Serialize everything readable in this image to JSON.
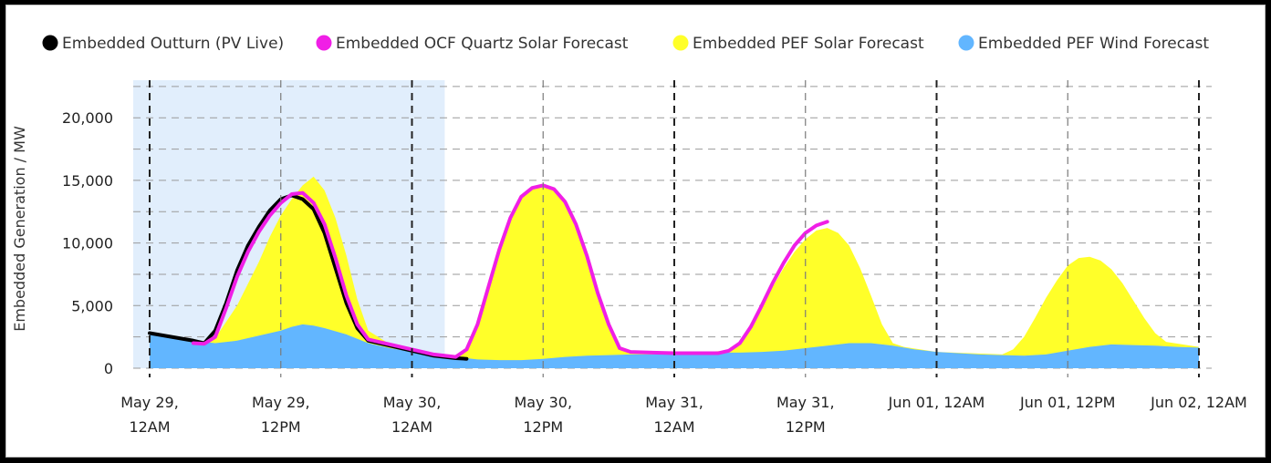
{
  "chart_data": {
    "type": "area",
    "ylabel": "Embedded Generation / MW",
    "xlabel": "",
    "ylim": [
      0,
      23000
    ],
    "y_ticks": [
      0,
      5000,
      10000,
      15000,
      20000
    ],
    "y_tick_labels": [
      "0",
      "5,000",
      "10,000",
      "15,000",
      "20,000"
    ],
    "x_range_hours": [
      0,
      96
    ],
    "x_ticks": [
      {
        "hour": 0,
        "lines": [
          "May 29,",
          "12AM"
        ]
      },
      {
        "hour": 12,
        "lines": [
          "May 29,",
          "12PM"
        ]
      },
      {
        "hour": 24,
        "lines": [
          "May 30,",
          "12AM"
        ]
      },
      {
        "hour": 36,
        "lines": [
          "May 30,",
          "12PM"
        ]
      },
      {
        "hour": 48,
        "lines": [
          "May 31,",
          "12AM"
        ]
      },
      {
        "hour": 60,
        "lines": [
          "May 31,",
          "12PM"
        ]
      },
      {
        "hour": 72,
        "lines": [
          "Jun 01, 12AM"
        ]
      },
      {
        "hour": 84,
        "lines": [
          "Jun 01, 12PM"
        ]
      },
      {
        "hour": 96,
        "lines": [
          "Jun 02, 12AM"
        ]
      }
    ],
    "shaded_region_hours": [
      -1.5,
      27
    ],
    "legend_position": "top",
    "series": [
      {
        "name": "Embedded PEF Solar Forecast",
        "kind": "area",
        "color": "#ffff29",
        "x": [
          0,
          5,
          6,
          8,
          10,
          11,
          12,
          13,
          14,
          15,
          16,
          17,
          18,
          19,
          20,
          22,
          24,
          27,
          28,
          29,
          30,
          31,
          32,
          33,
          34,
          35,
          36,
          37,
          38,
          39,
          40,
          41,
          42,
          43,
          44,
          45,
          46,
          47,
          48,
          53,
          54,
          55,
          56,
          57,
          58,
          59,
          60,
          61,
          62,
          63,
          64,
          65,
          66,
          67,
          68,
          69,
          72,
          78,
          79,
          80,
          81,
          82,
          83,
          84,
          85,
          86,
          87,
          88,
          89,
          90,
          91,
          92,
          93,
          96
        ],
        "y": [
          2900,
          2000,
          2400,
          5000,
          8500,
          10500,
          12200,
          13500,
          14600,
          15300,
          14200,
          12000,
          9000,
          5500,
          3000,
          1900,
          1500,
          950,
          900,
          1500,
          3500,
          6500,
          9500,
          12000,
          13700,
          14400,
          14600,
          14300,
          13300,
          11500,
          9000,
          6000,
          3500,
          1600,
          1300,
          1250,
          1200,
          1200,
          1200,
          1400,
          2000,
          3200,
          4800,
          6500,
          8000,
          9300,
          10300,
          11000,
          11200,
          10800,
          9800,
          8000,
          5800,
          3500,
          2000,
          1700,
          1300,
          1100,
          1500,
          2500,
          4000,
          5600,
          7000,
          8200,
          8800,
          8900,
          8600,
          7900,
          6800,
          5400,
          4000,
          2800,
          2100,
          1700
        ]
      },
      {
        "name": "Embedded PEF Wind Forecast",
        "kind": "area",
        "color": "#62b6ff",
        "x": [
          0,
          2,
          4,
          5,
          6,
          8,
          10,
          12,
          13,
          14,
          15,
          16,
          18,
          20,
          22,
          24,
          26,
          28,
          29,
          30,
          32,
          34,
          36,
          38,
          40,
          42,
          44,
          46,
          48,
          50,
          52,
          54,
          56,
          58,
          60,
          62,
          64,
          66,
          68,
          70,
          72,
          74,
          76,
          78,
          80,
          82,
          84,
          86,
          88,
          90,
          92,
          94,
          96
        ],
        "y": [
          2900,
          2600,
          2300,
          2100,
          2000,
          2200,
          2600,
          3000,
          3300,
          3500,
          3400,
          3200,
          2700,
          2000,
          1600,
          1300,
          1050,
          900,
          800,
          700,
          650,
          650,
          750,
          900,
          1000,
          1050,
          1100,
          1100,
          1150,
          1200,
          1250,
          1250,
          1300,
          1400,
          1600,
          1800,
          2000,
          2000,
          1800,
          1500,
          1300,
          1200,
          1100,
          1050,
          1000,
          1100,
          1400,
          1700,
          1900,
          1850,
          1800,
          1700,
          1650
        ]
      },
      {
        "name": "Embedded Outturn (PV Live)",
        "kind": "line",
        "color": "#000000",
        "x": [
          0,
          2,
          4,
          5,
          6,
          7,
          8,
          9,
          10,
          11,
          12,
          13,
          14,
          15,
          16,
          17,
          18,
          19,
          20,
          22,
          24,
          26,
          28,
          29
        ],
        "y": [
          2800,
          2500,
          2200,
          2000,
          3000,
          5200,
          7800,
          9800,
          11300,
          12600,
          13500,
          13800,
          13500,
          12700,
          10800,
          8000,
          5200,
          3200,
          2200,
          1800,
          1400,
          1000,
          800,
          750
        ]
      },
      {
        "name": "Embedded OCF Quartz Solar Forecast",
        "kind": "line",
        "color": "#f01fe6",
        "x": [
          4,
          5,
          6,
          7,
          8,
          9,
          10,
          11,
          12,
          13,
          14,
          15,
          16,
          17,
          18,
          19,
          20,
          22,
          24,
          26,
          28,
          29,
          30,
          31,
          32,
          33,
          34,
          35,
          36,
          37,
          38,
          39,
          40,
          41,
          42,
          43,
          44,
          46,
          48,
          50,
          52,
          53,
          54,
          55,
          56,
          57,
          58,
          59,
          60,
          61,
          62
        ],
        "y": [
          2000,
          1950,
          2500,
          4800,
          7300,
          9300,
          10900,
          12200,
          13200,
          13900,
          14000,
          13200,
          11500,
          8800,
          5800,
          3500,
          2300,
          1900,
          1500,
          1100,
          900,
          1500,
          3500,
          6500,
          9500,
          12000,
          13700,
          14400,
          14600,
          14300,
          13300,
          11500,
          9000,
          6000,
          3500,
          1600,
          1300,
          1250,
          1200,
          1200,
          1200,
          1400,
          2000,
          3300,
          5000,
          6800,
          8400,
          9800,
          10800,
          11400,
          11700
        ]
      }
    ]
  }
}
